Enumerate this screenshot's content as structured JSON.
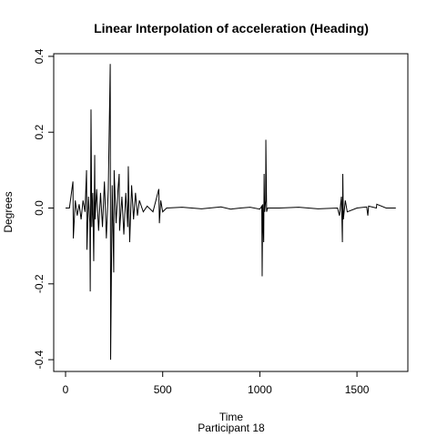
{
  "chart_data": {
    "type": "line",
    "title": "Linear Interpolation of acceleration (Heading)",
    "x_label": "Time",
    "subtitle": "Participant  18",
    "y_label": "Degrees",
    "xlim": [
      -61,
      1762
    ],
    "ylim": [
      -0.431,
      0.407
    ],
    "xticks": [
      0,
      500,
      1000,
      1500
    ],
    "yticks": [
      -0.4,
      -0.2,
      {
        "value": 0,
        "label": "0.0"
      },
      0.2,
      0.4
    ],
    "series": [
      {
        "color": "#000000",
        "x": [
          0,
          20,
          38,
          40,
          50,
          60,
          70,
          80,
          90,
          100,
          108,
          110,
          118,
          125,
          127,
          131,
          135,
          140,
          145,
          150,
          152,
          160,
          170,
          180,
          190,
          200,
          210,
          220,
          230,
          232,
          240,
          248,
          250,
          260,
          270,
          276,
          278,
          290,
          300,
          310,
          320,
          323,
          330,
          340,
          350,
          360,
          370,
          380,
          400,
          420,
          450,
          480,
          483,
          490,
          500,
          520,
          600,
          700,
          800,
          850,
          900,
          950,
          1000,
          1010,
          1012,
          1015,
          1020,
          1022,
          1025,
          1030,
          1031,
          1035,
          1040,
          1100,
          1200,
          1300,
          1400,
          1410,
          1420,
          1425,
          1427,
          1430,
          1440,
          1450,
          1500,
          1550,
          1556,
          1560,
          1600,
          1602,
          1650,
          1700
        ],
        "values": [
          0,
          0,
          0.07,
          -0.08,
          0.02,
          -0.02,
          0.01,
          -0.03,
          0.02,
          -0.01,
          0.1,
          -0.11,
          0.03,
          -0.04,
          -0.22,
          0.26,
          -0.05,
          0.04,
          -0.14,
          0.14,
          -0.03,
          0.05,
          -0.06,
          0.04,
          -0.05,
          0.07,
          -0.08,
          0.05,
          0.38,
          -0.4,
          0.06,
          -0.17,
          0.1,
          -0.04,
          0.05,
          0.09,
          -0.06,
          0.03,
          -0.07,
          0.04,
          -0.05,
          0.11,
          -0.09,
          0.06,
          -0.03,
          0.04,
          -0.02,
          0.02,
          -0.01,
          0.005,
          -0.01,
          0.05,
          -0.04,
          0.02,
          -0.01,
          0,
          0.002,
          -0.002,
          0.003,
          -0.003,
          0,
          0.002,
          -0.003,
          0.005,
          -0.18,
          0.01,
          -0.09,
          0.09,
          -0.01,
          0.02,
          0.18,
          -0.01,
          0,
          0,
          0.002,
          -0.002,
          0,
          -0.02,
          0.03,
          -0.09,
          0.09,
          -0.03,
          0.02,
          -0.01,
          0,
          0.003,
          -0.02,
          0.005,
          0,
          0.01,
          0,
          0
        ]
      }
    ]
  }
}
